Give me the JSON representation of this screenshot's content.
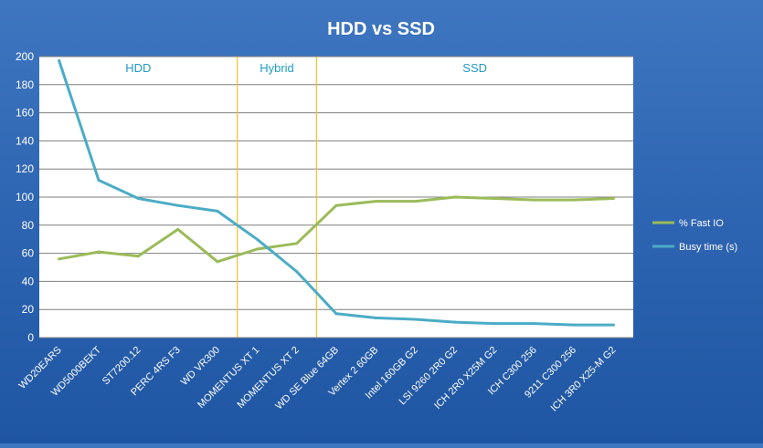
{
  "chart_data": {
    "type": "line",
    "title": "HDD vs SSD",
    "xlabel": "",
    "ylabel": "",
    "ylim": [
      0,
      200
    ],
    "yticks": [
      0,
      20,
      40,
      60,
      80,
      100,
      120,
      140,
      160,
      180,
      200
    ],
    "grid": true,
    "legend_position": "right",
    "categories": [
      "WD20EARS",
      "WD5000BEKT",
      "ST7200.12",
      "PERC 4RS F3",
      "WD VR300",
      "MOMENTUS XT 1",
      "MOMENTUS XT 2",
      "WD SE Blue 64GB",
      "Vertex 2 60GB",
      "Intel 160GB G2",
      "LSI 9260 2R0 G2",
      "ICH 2R0 X25M G2",
      "ICH C300 256",
      "9211 C300 256",
      "ICH 3R0 X25-M G2"
    ],
    "series": [
      {
        "name": "% Fast IO",
        "color": "#9bbb59",
        "values": [
          56,
          61,
          58,
          77,
          54,
          63,
          67,
          94,
          97,
          97,
          100,
          99,
          98,
          98,
          99
        ]
      },
      {
        "name": "Busy time (s)",
        "color": "#4bacc6",
        "values": [
          197,
          112,
          99,
          94,
          90,
          70,
          47,
          17,
          14,
          13,
          11,
          10,
          10,
          9,
          9
        ]
      }
    ],
    "regions": [
      {
        "label": "HDD",
        "start": 0,
        "end": 5
      },
      {
        "label": "Hybrid",
        "start": 5,
        "end": 7
      },
      {
        "label": "SSD",
        "start": 7,
        "end": 15
      }
    ],
    "region_label_color": "#1f9cc4",
    "divider_color": "#f2c12e"
  }
}
